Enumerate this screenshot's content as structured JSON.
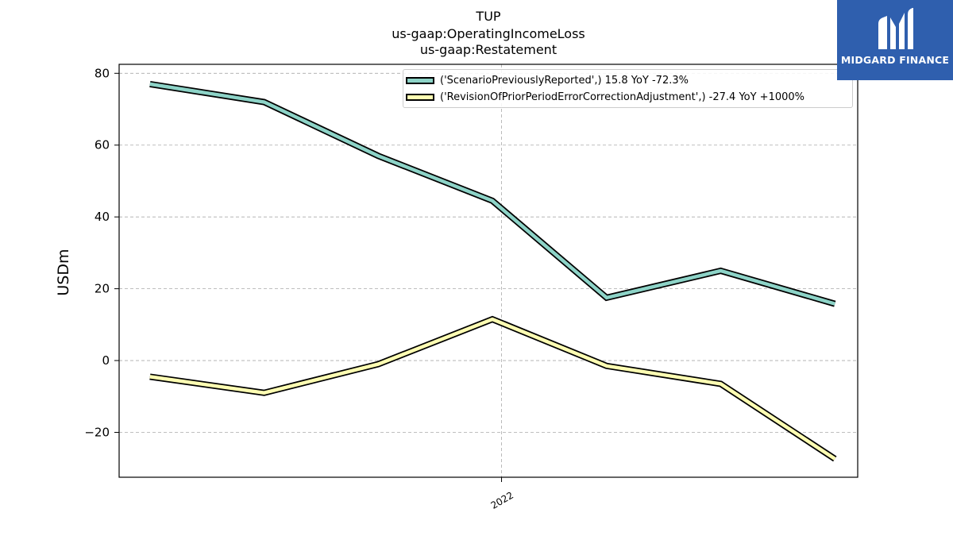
{
  "title_lines": [
    "TUP",
    "us-gaap:OperatingIncomeLoss",
    "us-gaap:Restatement"
  ],
  "logo": {
    "text": "MIDGARD FINANCE",
    "icon": "midgard-logo-icon",
    "color": "#2f5fae"
  },
  "chart_data": {
    "type": "line",
    "title": "TUP\nus-gaap:OperatingIncomeLoss\nus-gaap:Restatement",
    "xlabel": "",
    "ylabel": "USDm",
    "x_index": [
      0,
      1,
      2,
      3,
      4,
      5,
      6
    ],
    "x_ticks": [
      {
        "pos": 3.08,
        "label": "2022"
      }
    ],
    "xlim": [
      -0.27,
      6.2
    ],
    "ylim": [
      -32.5,
      82.5
    ],
    "y_ticks": [
      -20,
      0,
      20,
      40,
      60,
      80
    ],
    "y_tick_labels": [
      "−20",
      "0",
      "20",
      "40",
      "60",
      "80"
    ],
    "grid": true,
    "legend_placement": "top-right",
    "series": [
      {
        "name": "('ScenarioPreviouslyReported',) 15.8 YoY -72.3%",
        "color": "#8dd3c7",
        "values": [
          77.0,
          72.0,
          57.0,
          44.5,
          17.5,
          25.0,
          15.8
        ]
      },
      {
        "name": "('RevisionOfPriorPeriodErrorCorrectionAdjustment',) -27.4 YoY +1000%",
        "color": "#ffffb3",
        "values": [
          -4.5,
          -9.0,
          -1.0,
          11.5,
          -1.5,
          -6.5,
          -27.4
        ]
      }
    ]
  }
}
